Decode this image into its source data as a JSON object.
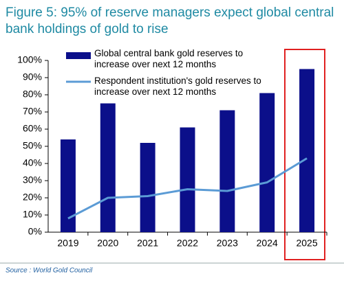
{
  "chart_data": {
    "type": "bar-line",
    "title": [
      "Figure 5: 95% of reserve managers expect global central",
      "bank holdings of gold to rise"
    ],
    "categories": [
      "2019",
      "2020",
      "2021",
      "2022",
      "2023",
      "2024",
      "2025"
    ],
    "series": [
      {
        "name": "Global central bank gold reserves to increase over next 12 months",
        "type": "bar",
        "color": "#0b0f8a",
        "values": [
          54,
          75,
          52,
          61,
          71,
          81,
          95
        ]
      },
      {
        "name": "Respondent institution's gold reserves to increase over next 12 months",
        "type": "line",
        "color": "#5b9bd5",
        "values": [
          8,
          20,
          21,
          25,
          24,
          29,
          43
        ]
      }
    ],
    "ylim": [
      0,
      100
    ],
    "yticks": [
      {
        "value": 0,
        "label": "0%"
      },
      {
        "value": 10,
        "label": "10%"
      },
      {
        "value": 20,
        "label": "20%"
      },
      {
        "value": 30,
        "label": "30%"
      },
      {
        "value": 40,
        "label": "40%"
      },
      {
        "value": 50,
        "label": "50%"
      },
      {
        "value": 60,
        "label": "60%"
      },
      {
        "value": 70,
        "label": "70%"
      },
      {
        "value": 80,
        "label": "80%"
      },
      {
        "value": 90,
        "label": "90%"
      },
      {
        "value": 100,
        "label": "100%"
      }
    ],
    "grid": false,
    "legend": "top-left",
    "source": "Source : World Gold Council"
  }
}
